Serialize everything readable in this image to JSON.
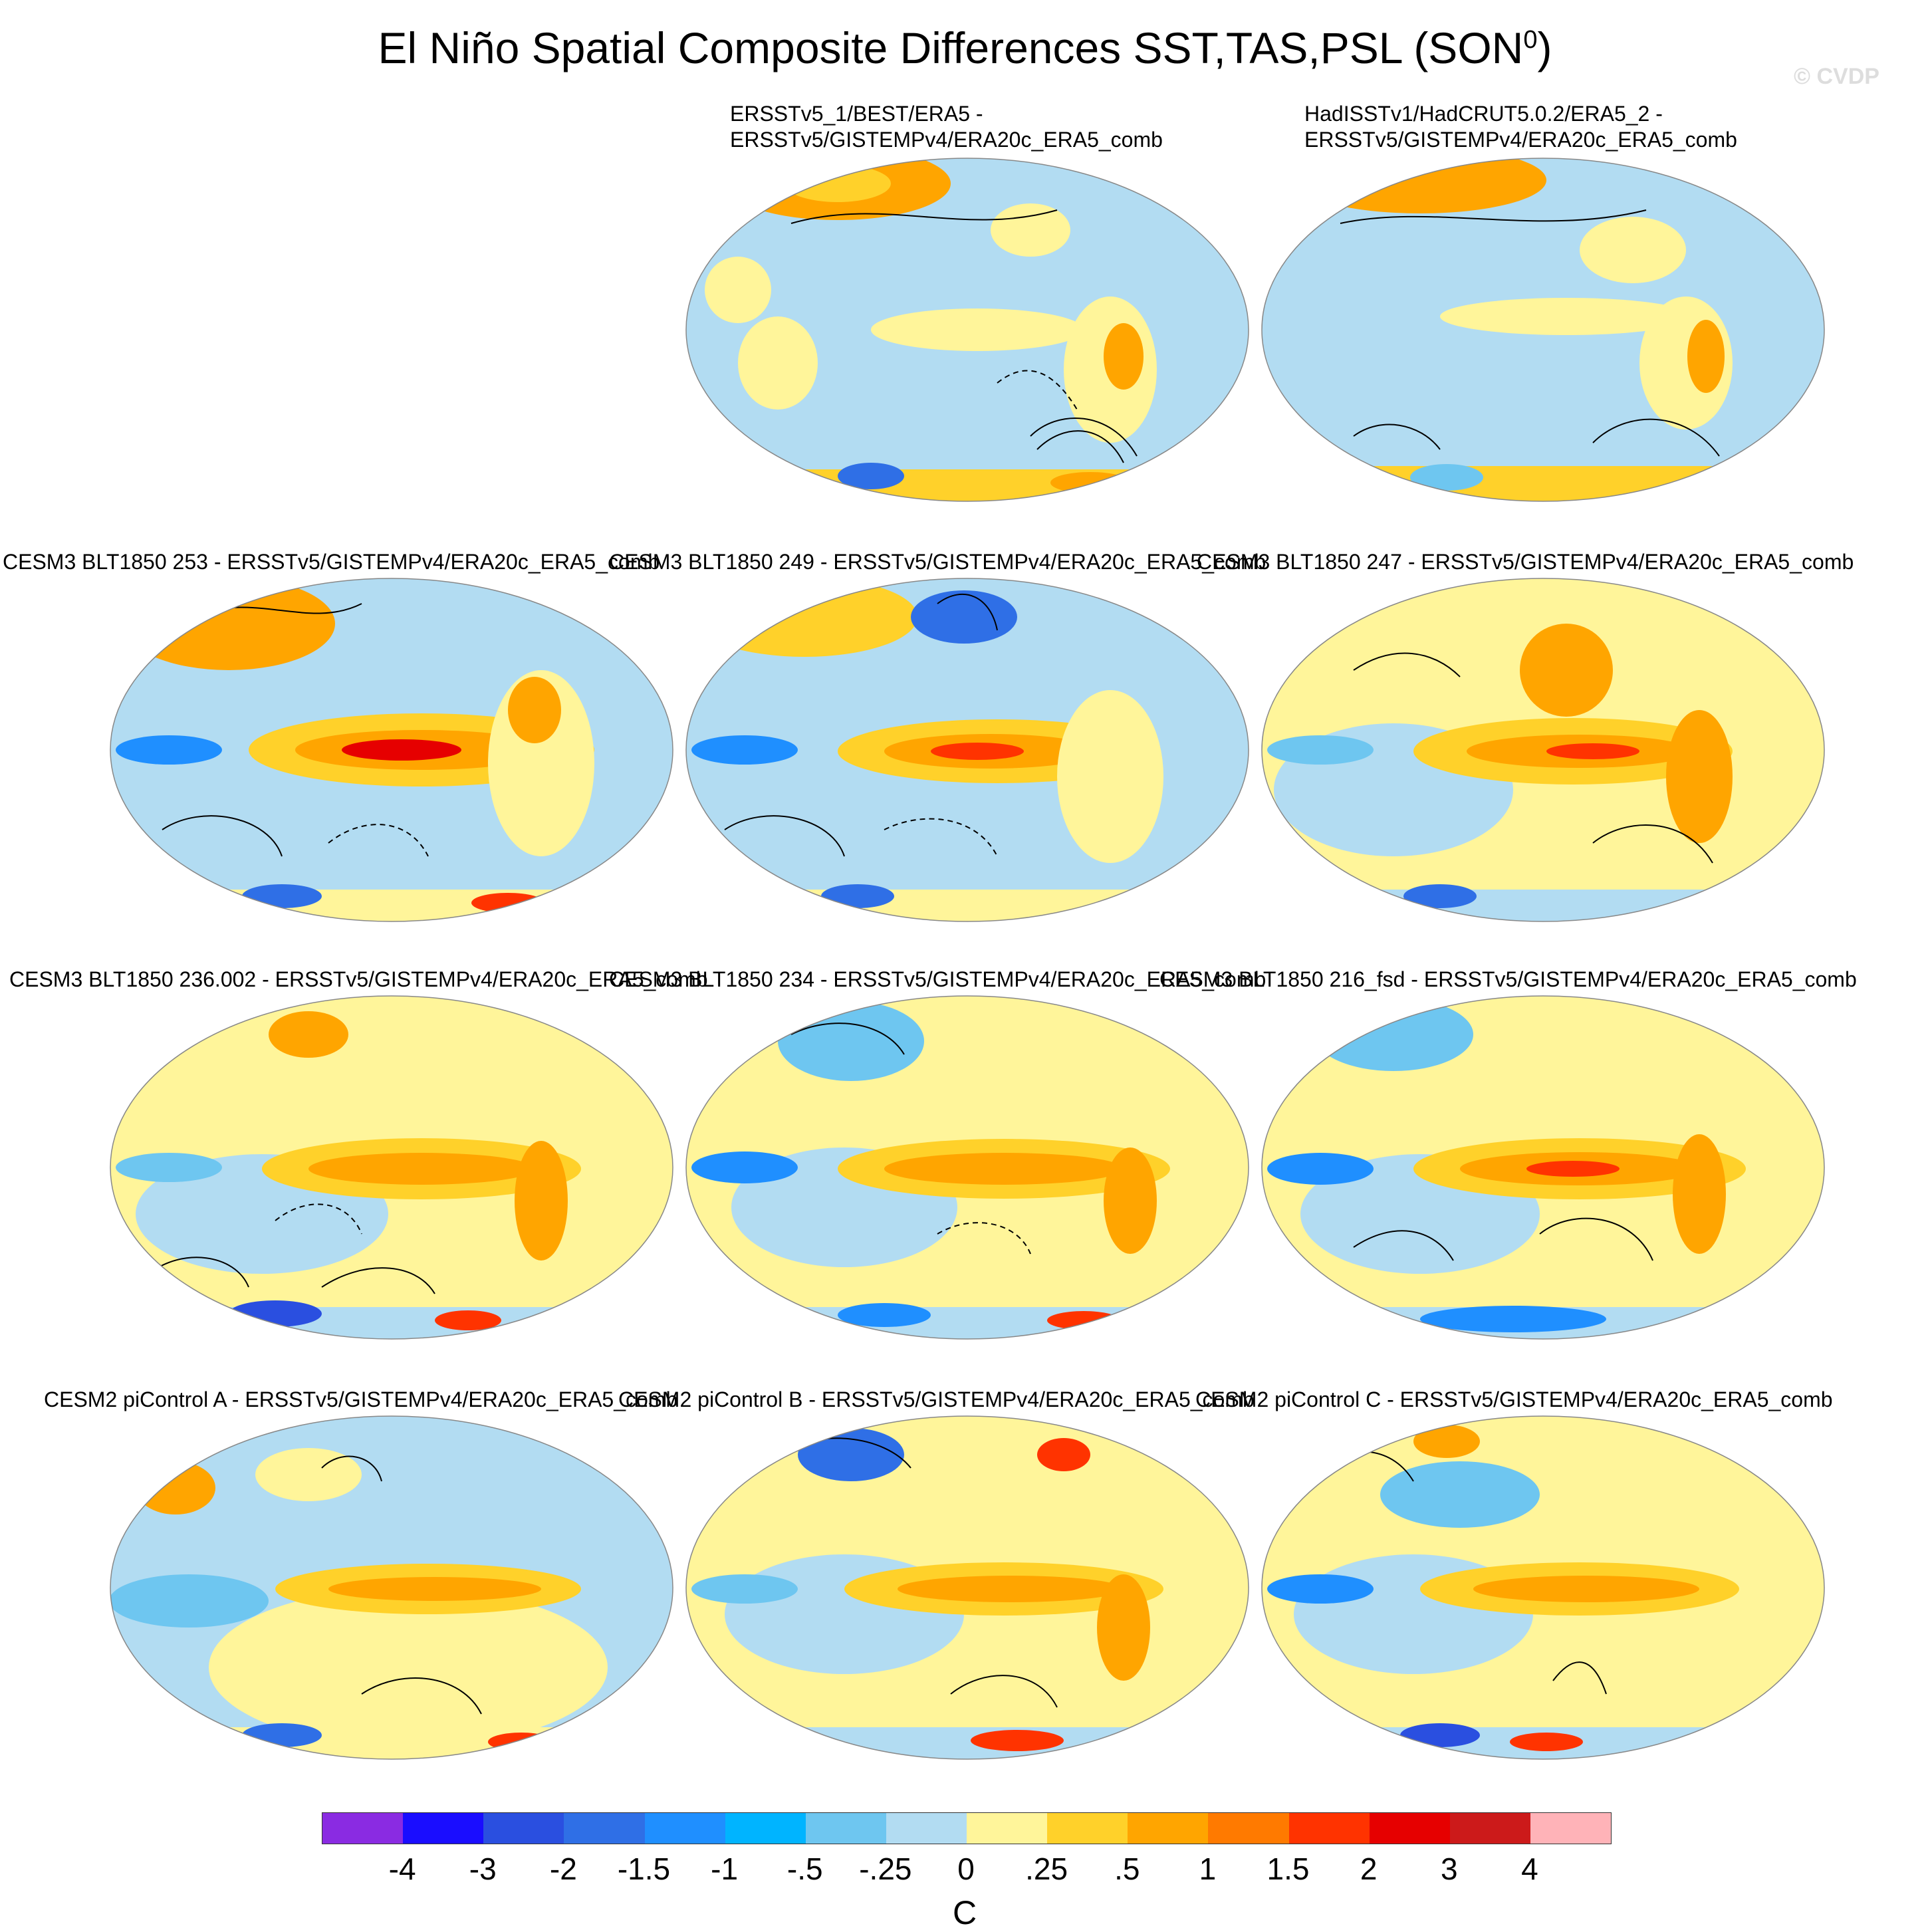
{
  "title": "El Niño Spatial Composite Differences SST,TAS,PSL (SON",
  "title_superscript": "0",
  "title_close": ")",
  "watermark": "© CVDP",
  "panels": [
    {
      "line1": "ERSSTv5_1/BEST/ERA5 -",
      "line2": "ERSSTv5/GISTEMPv4/ERA20c_ERA5_comb"
    },
    {
      "line1": "HadISSTv1/HadCRUT5.0.2/ERA5_2 -",
      "line2": "ERSSTv5/GISTEMPv4/ERA20c_ERA5_comb"
    },
    {
      "line1": "CESM3 BLT1850 253 - ERSSTv5/GISTEMPv4/ERA20c_ERA5_comb"
    },
    {
      "line1": "CESM3 BLT1850 249 - ERSSTv5/GISTEMPv4/ERA20c_ERA5_comb"
    },
    {
      "line1": "CESM3 BLT1850 247 - ERSSTv5/GISTEMPv4/ERA20c_ERA5_comb"
    },
    {
      "line1": "CESM3 BLT1850 236.002 - ERSSTv5/GISTEMPv4/ERA20c_ERA5_comb"
    },
    {
      "line1": "CESM3 BLT1850 234 - ERSSTv5/GISTEMPv4/ERA20c_ERA5_comb"
    },
    {
      "line1": "CESM3 BLT1850 216_fsd - ERSSTv5/GISTEMPv4/ERA20c_ERA5_comb"
    },
    {
      "line1": "CESM2 piControl A - ERSSTv5/GISTEMPv4/ERA20c_ERA5_comb"
    },
    {
      "line1": "CESM2 piControl B - ERSSTv5/GISTEMPv4/ERA20c_ERA5_comb"
    },
    {
      "line1": "CESM2 piControl C - ERSSTv5/GISTEMPv4/ERA20c_ERA5_comb"
    }
  ],
  "colorbar": {
    "colors": [
      "#8a2be2",
      "#1a0dff",
      "#2a4fe0",
      "#2f6fe6",
      "#1f8fff",
      "#00b4ff",
      "#6ec6f0",
      "#b2dcf2",
      "#fff59a",
      "#ffd12a",
      "#ffa500",
      "#ff7a00",
      "#ff3300",
      "#e60000",
      "#cc1a1a",
      "#ffb3b8"
    ],
    "tick_labels": [
      "-4",
      "-3",
      "-2",
      "-1.5",
      "-1",
      "-.5",
      "-.25",
      "0",
      ".25",
      ".5",
      "1",
      "1.5",
      "2",
      "3",
      "4"
    ],
    "unit": "C"
  }
}
